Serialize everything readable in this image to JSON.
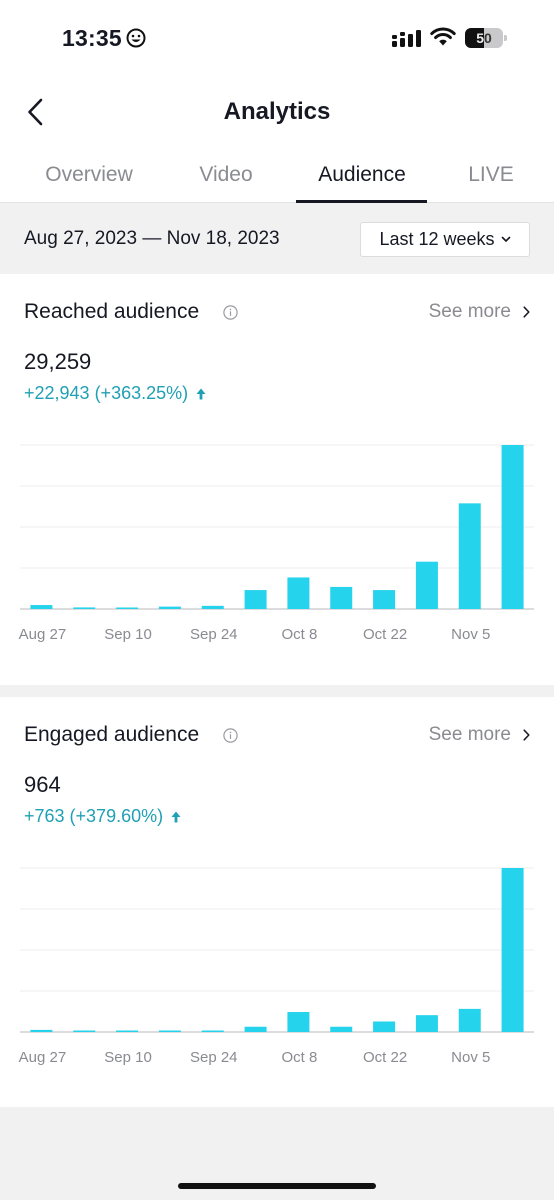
{
  "status_bar": {
    "time": "13:35",
    "battery": "50"
  },
  "header": {
    "title": "Analytics"
  },
  "tabs": [
    {
      "label": "Overview",
      "active": false
    },
    {
      "label": "Video",
      "active": false
    },
    {
      "label": "Audience",
      "active": true
    },
    {
      "label": "LIVE",
      "active": false
    }
  ],
  "date_range": "Aug 27, 2023 — Nov 18, 2023",
  "period_selector": {
    "label": "Last 12 weeks"
  },
  "reached": {
    "title": "Reached audience",
    "see_more": "See more",
    "value": "29,259",
    "change": "+22,943 (+363.25%)"
  },
  "engaged": {
    "title": "Engaged audience",
    "see_more": "See more",
    "value": "964",
    "change": "+763 (+379.60%)"
  },
  "colors": {
    "bar": "#25d3ec",
    "accent_text": "#20a0b4",
    "arrow": "#20a0b4"
  },
  "chart_data": [
    {
      "type": "bar",
      "title": "Reached audience",
      "x_labels": [
        "Aug 27",
        "Sep 10",
        "Sep 24",
        "Oct 8",
        "Oct 22",
        "Nov 5"
      ],
      "values": [
        250,
        100,
        80,
        150,
        200,
        1200,
        2000,
        1400,
        1200,
        3000,
        6700,
        10400
      ],
      "ylim": [
        0,
        10400
      ],
      "grid": true
    },
    {
      "type": "bar",
      "title": "Engaged audience",
      "x_labels": [
        "Aug 27",
        "Sep 10",
        "Sep 24",
        "Oct 8",
        "Oct 22",
        "Nov 5"
      ],
      "values": [
        10,
        5,
        5,
        5,
        5,
        25,
        95,
        25,
        50,
        80,
        110,
        780
      ],
      "ylim": [
        0,
        780
      ],
      "grid": true
    }
  ]
}
